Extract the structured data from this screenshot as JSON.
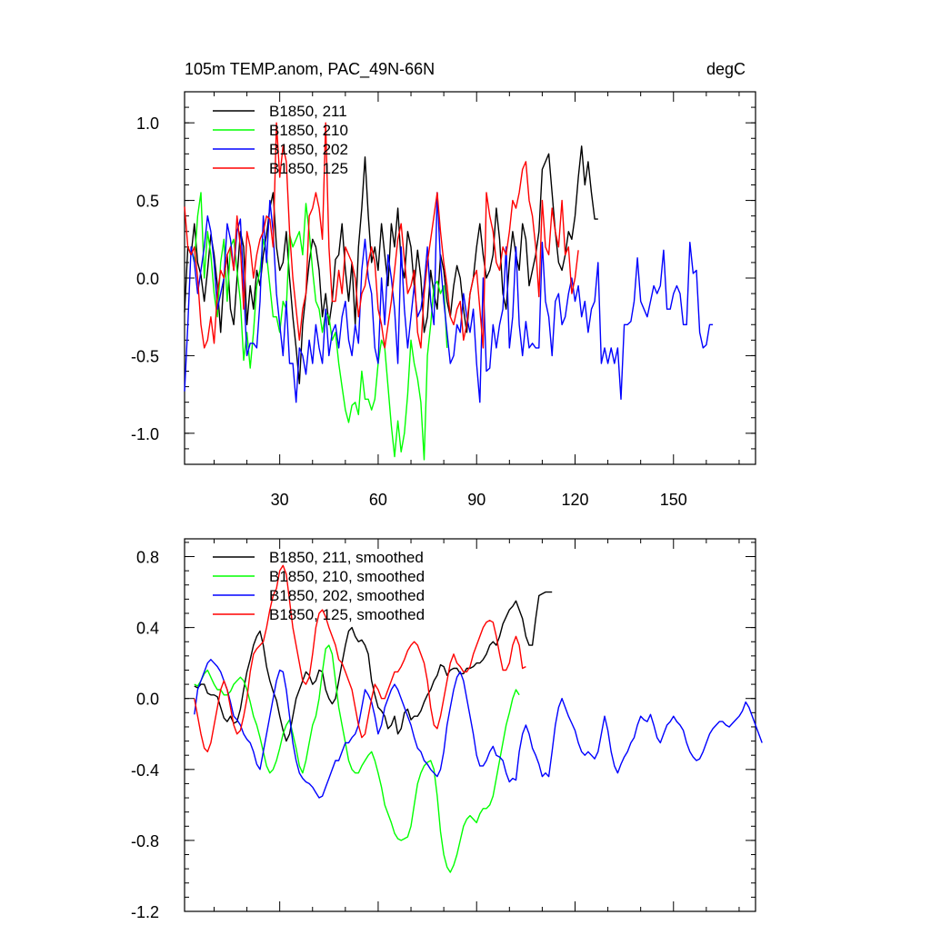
{
  "chart_data": [
    {
      "type": "line",
      "title": "105m TEMP.anom, PAC_49N-66N",
      "units": "degC",
      "xlim": [
        1,
        175
      ],
      "ylim": [
        -1.2,
        1.2
      ],
      "x_ticks": [
        30,
        60,
        90,
        120,
        150
      ],
      "x_tick_labels": [
        "30",
        "60",
        "90",
        "120",
        "150"
      ],
      "y_ticks": [
        -1.0,
        -0.5,
        0.0,
        0.5,
        1.0
      ],
      "y_tick_labels": [
        "-1.0",
        "-0.5",
        "0.0",
        "0.5",
        "1.0"
      ],
      "legend_position": "top-left",
      "series": [
        {
          "name": "B1850, 211",
          "color": "#000000",
          "x0": 1,
          "values": [
            -0.22,
            0.2,
            0.15,
            0.35,
            0.1,
            0.02,
            -0.15,
            0.05,
            0.28,
            0.15,
            -0.05,
            -0.35,
            0.0,
            0.15,
            -0.2,
            -0.3,
            0.0,
            0.3,
            0.2,
            -0.3,
            -0.05,
            -0.2,
            0.05,
            -0.05,
            0.15,
            0.28,
            0.45,
            0.55,
            0.2,
            0.05,
            0.1,
            0.3,
            0.0,
            -0.25,
            -0.45,
            -0.68,
            -0.3,
            -0.1,
            0.1,
            0.25,
            0.2,
            0.05,
            -0.25,
            -0.1,
            -0.3,
            -0.15,
            0.12,
            0.15,
            0.35,
            0.05,
            -0.15,
            0.1,
            -0.3,
            0.2,
            0.45,
            0.78,
            0.4,
            0.1,
            0.2,
            0.05,
            0.35,
            0.15,
            -0.05,
            0.35,
            0.2,
            0.45,
            0.1,
            0.0,
            0.3,
            0.2,
            -0.05,
            0.18,
            0.0,
            -0.35,
            -0.25,
            0.05,
            -0.1,
            -0.2,
            0.15,
            0.05,
            -0.15,
            -0.25,
            -0.05,
            0.08,
            0.0,
            -0.2,
            -0.35,
            -0.1,
            0.0,
            0.2,
            0.35,
            0.15,
            0.0,
            0.05,
            0.15,
            0.45,
            0.25,
            -0.1,
            -0.2,
            0.1,
            0.3,
            0.15,
            0.05,
            0.35,
            0.25,
            -0.05,
            0.05,
            0.15,
            0.3,
            0.7,
            0.75,
            0.8,
            0.55,
            0.3,
            0.1,
            0.05,
            0.15,
            0.3,
            0.25,
            0.4,
            0.65,
            0.85,
            0.6,
            0.75,
            0.55,
            0.38,
            0.38
          ]
        },
        {
          "name": "B1850, 210",
          "color": "#00ff00",
          "x0": 3,
          "values": [
            0.2,
            0.1,
            0.4,
            0.55,
            0.0,
            0.3,
            0.15,
            -0.1,
            -0.25,
            0.1,
            0.25,
            -0.15,
            0.2,
            0.25,
            0.05,
            -0.15,
            -0.53,
            -0.35,
            -0.58,
            -0.35,
            -0.05,
            0.05,
            0.25,
            0.15,
            -0.05,
            -0.25,
            -0.25,
            -0.35,
            -0.15,
            -0.2,
            0.28,
            0.2,
            0.25,
            0.3,
            0.15,
            0.48,
            0.3,
            0.05,
            -0.15,
            -0.2,
            -0.35,
            -0.22,
            -0.25,
            -0.4,
            -0.35,
            -0.55,
            -0.7,
            -0.85,
            -0.93,
            -0.82,
            -0.8,
            -0.88,
            -0.6,
            -0.78,
            -0.78,
            -0.85,
            -0.78,
            -0.55,
            -0.4,
            -0.45,
            -0.7,
            -0.95,
            -1.15,
            -0.92,
            -1.12,
            -1.0,
            -0.75,
            -0.4,
            -0.55,
            -0.65,
            -0.8,
            -1.17,
            -0.5,
            -0.3,
            -0.05,
            -0.02,
            -0.1,
            -0.05,
            -0.45
          ]
        },
        {
          "name": "B1850, 202",
          "color": "#0000ff",
          "x0": 1,
          "values": [
            -0.73,
            -0.3,
            0.2,
            0.1,
            -0.1,
            0.05,
            0.2,
            0.4,
            0.3,
            0.1,
            -0.2,
            -0.1,
            0.0,
            0.35,
            0.25,
            0.05,
            0.3,
            0.38,
            -0.05,
            -0.5,
            -0.42,
            -0.42,
            -0.45,
            -0.15,
            0.4,
            0.1,
            0.5,
            0.3,
            -0.1,
            -0.3,
            -0.5,
            -0.15,
            -0.55,
            -0.55,
            -0.8,
            -0.45,
            -0.5,
            -0.62,
            -0.4,
            -0.55,
            -0.3,
            -0.45,
            -0.55,
            -0.2,
            -0.5,
            -0.35,
            -0.3,
            -0.45,
            -0.25,
            -0.15,
            -0.4,
            -0.5,
            -0.3,
            -0.42,
            0.05,
            0.25,
            0.0,
            -0.1,
            -0.45,
            -0.55,
            0.0,
            -0.3,
            0.15,
            0.0,
            -0.2,
            -0.55,
            0.2,
            -0.2,
            -0.45,
            -0.25,
            -0.05,
            -0.25,
            -0.2,
            -0.05,
            0.2,
            -0.15,
            -0.3,
            0.55,
            0.1,
            -0.15,
            -0.35,
            -0.55,
            -0.5,
            -0.3,
            -0.35,
            -0.1,
            -0.25,
            -0.35,
            -0.2,
            -0.55,
            -0.8,
            0.0,
            -0.6,
            -0.58,
            -0.3,
            -0.45,
            -0.3,
            -0.2,
            0.2,
            -0.45,
            -0.25,
            0.2,
            -0.3,
            -0.5,
            -0.28,
            -0.45,
            -0.42,
            -0.45,
            -0.45,
            0.23,
            -0.15,
            -0.25,
            -0.5,
            -0.15,
            -0.1,
            -0.3,
            -0.25,
            -0.1,
            0.0,
            -0.15,
            -0.05,
            -0.25,
            -0.15,
            -0.35,
            -0.2,
            -0.15,
            0.1,
            -0.55,
            -0.45,
            -0.55,
            -0.45,
            -0.55,
            -0.45,
            -0.78,
            -0.3,
            -0.3,
            -0.28,
            -0.15,
            0.13,
            -0.15,
            -0.2,
            -0.25,
            -0.15,
            -0.05,
            -0.1,
            -0.05,
            0.18,
            -0.2,
            -0.2,
            -0.1,
            -0.05,
            -0.1,
            -0.3,
            -0.3,
            0.23,
            0.03,
            0.05,
            -0.35,
            -0.45,
            -0.43,
            -0.3,
            -0.3
          ]
        },
        {
          "name": "B1850, 125",
          "color": "#ff0000",
          "x0": 1,
          "values": [
            0.46,
            0.2,
            0.15,
            0.2,
            0.0,
            -0.3,
            -0.45,
            -0.4,
            -0.25,
            -0.42,
            -0.1,
            0.05,
            0.0,
            0.15,
            0.2,
            0.05,
            0.4,
            0.2,
            -0.2,
            0.3,
            0.2,
            0.0,
            0.15,
            0.25,
            0.3,
            0.4,
            0.38,
            0.2,
            1.0,
            0.65,
            0.85,
            0.75,
            0.3,
            0.0,
            -0.2,
            -0.4,
            -0.2,
            -0.1,
            0.4,
            0.45,
            0.55,
            0.45,
            0.25,
            1.0,
            0.2,
            -0.15,
            -0.15,
            0.05,
            -0.1,
            0.2,
            0.15,
            0.1,
            0.0,
            -0.25,
            -0.1,
            -0.05,
            0.1,
            0.2,
            0.1,
            -0.2,
            -0.3,
            -0.45,
            -0.3,
            -0.15,
            0.05,
            0.25,
            0.35,
            0.12,
            -0.1,
            -0.05,
            0.05,
            -0.35,
            -0.45,
            -0.1,
            0.1,
            0.25,
            0.4,
            0.55,
            0.3,
            0.1,
            -0.05,
            -0.25,
            -0.3,
            -0.2,
            -0.15,
            -0.4,
            -0.3,
            -0.1,
            0.0,
            0.05,
            -0.2,
            -0.45,
            0.55,
            0.4,
            0.3,
            0.1,
            0.05,
            0.2,
            0.15,
            0.3,
            0.5,
            0.45,
            0.55,
            0.7,
            0.75,
            0.5,
            0.4,
            0.2,
            -0.12,
            0.5,
            0.2,
            0.15,
            0.45,
            0.3,
            0.2,
            0.5,
            0.15,
            0.2,
            -0.1,
            0.0,
            0.18
          ]
        }
      ]
    },
    {
      "type": "line",
      "title": "",
      "xlim": [
        1,
        175
      ],
      "ylim": [
        -1.2,
        0.9
      ],
      "y_ticks": [
        -1.2,
        -0.8,
        -0.4,
        0.0,
        0.4,
        0.8
      ],
      "y_tick_labels": [
        "-1.2",
        "-0.8",
        "-0.4",
        "0.0",
        "0.4",
        "0.8"
      ],
      "legend_position": "top-left",
      "series": [
        {
          "name": "B1850, 211, smoothed",
          "color": "#000000",
          "x0": 4,
          "values": [
            0.07,
            0.06,
            0.08,
            0.08,
            0.03,
            0.02,
            0.02,
            0.01,
            -0.05,
            -0.11,
            -0.13,
            -0.1,
            -0.14,
            -0.13,
            -0.06,
            0.05,
            0.15,
            0.22,
            0.3,
            0.35,
            0.38,
            0.3,
            0.18,
            0.1,
            0.04,
            -0.01,
            -0.1,
            -0.18,
            -0.24,
            -0.2,
            -0.1,
            0.0,
            0.05,
            0.1,
            0.15,
            0.13,
            0.08,
            0.1,
            0.16,
            0.15,
            0.05,
            0.0,
            -0.03,
            0.0,
            0.1,
            0.2,
            0.3,
            0.38,
            0.4,
            0.35,
            0.32,
            0.33,
            0.3,
            0.25,
            0.1,
            0.02,
            -0.05,
            -0.07,
            -0.1,
            -0.17,
            -0.15,
            -0.1,
            -0.2,
            -0.17,
            -0.08,
            -0.06,
            -0.12,
            -0.1,
            -0.1,
            -0.07,
            -0.02,
            0.02,
            0.05,
            0.1,
            0.13,
            0.19,
            0.18,
            0.13,
            0.16,
            0.17,
            0.17,
            0.14,
            0.14,
            0.17,
            0.17,
            0.18,
            0.2,
            0.2,
            0.22,
            0.25,
            0.3,
            0.32,
            0.3,
            0.35,
            0.42,
            0.46,
            0.5,
            0.52,
            0.55,
            0.5,
            0.45,
            0.35,
            0.3,
            0.3,
            0.45,
            0.58,
            0.59,
            0.6,
            0.6,
            0.6
          ]
        },
        {
          "name": "B1850, 210, smoothed",
          "color": "#00ff00",
          "x0": 4,
          "values": [
            0.08,
            0.07,
            0.1,
            0.14,
            0.16,
            0.12,
            0.08,
            0.05,
            0.05,
            0.02,
            0.02,
            0.04,
            0.08,
            0.1,
            0.12,
            0.1,
            0.05,
            -0.02,
            -0.1,
            -0.15,
            -0.22,
            -0.3,
            -0.38,
            -0.42,
            -0.4,
            -0.35,
            -0.28,
            -0.2,
            -0.15,
            -0.12,
            -0.2,
            -0.28,
            -0.38,
            -0.42,
            -0.35,
            -0.25,
            -0.15,
            -0.1,
            0.0,
            0.15,
            0.28,
            0.3,
            0.25,
            0.1,
            -0.05,
            -0.15,
            -0.25,
            -0.35,
            -0.4,
            -0.42,
            -0.42,
            -0.38,
            -0.35,
            -0.32,
            -0.3,
            -0.35,
            -0.42,
            -0.5,
            -0.6,
            -0.65,
            -0.7,
            -0.76,
            -0.79,
            -0.8,
            -0.79,
            -0.78,
            -0.72,
            -0.6,
            -0.48,
            -0.42,
            -0.38,
            -0.36,
            -0.35,
            -0.4,
            -0.55,
            -0.75,
            -0.88,
            -0.95,
            -0.98,
            -0.94,
            -0.88,
            -0.8,
            -0.72,
            -0.68,
            -0.66,
            -0.68,
            -0.7,
            -0.65,
            -0.62,
            -0.62,
            -0.6,
            -0.55,
            -0.45,
            -0.35,
            -0.25,
            -0.15,
            -0.08,
            0.0,
            0.05,
            0.02
          ]
        },
        {
          "name": "B1850, 202, smoothed",
          "color": "#0000ff",
          "x0": 4,
          "values": [
            -0.09,
            0.05,
            0.1,
            0.15,
            0.2,
            0.22,
            0.2,
            0.18,
            0.15,
            0.1,
            0.05,
            -0.02,
            -0.1,
            -0.12,
            -0.15,
            -0.2,
            -0.23,
            -0.25,
            -0.3,
            -0.37,
            -0.4,
            -0.3,
            -0.2,
            -0.1,
            0.0,
            0.1,
            0.16,
            0.15,
            0.05,
            -0.1,
            -0.25,
            -0.35,
            -0.42,
            -0.45,
            -0.47,
            -0.48,
            -0.5,
            -0.53,
            -0.56,
            -0.55,
            -0.5,
            -0.45,
            -0.4,
            -0.35,
            -0.35,
            -0.3,
            -0.25,
            -0.25,
            -0.22,
            -0.2,
            -0.15,
            -0.05,
            0.05,
            0.02,
            -0.02,
            -0.1,
            -0.2,
            -0.15,
            -0.05,
            0.0,
            0.05,
            0.08,
            0.05,
            0.0,
            -0.05,
            -0.1,
            -0.15,
            -0.22,
            -0.28,
            -0.3,
            -0.35,
            -0.37,
            -0.4,
            -0.42,
            -0.44,
            -0.4,
            -0.3,
            -0.15,
            -0.05,
            0.05,
            0.12,
            0.15,
            0.1,
            0.0,
            -0.1,
            -0.2,
            -0.32,
            -0.38,
            -0.38,
            -0.35,
            -0.3,
            -0.27,
            -0.32,
            -0.33,
            -0.35,
            -0.42,
            -0.47,
            -0.45,
            -0.46,
            -0.3,
            -0.2,
            -0.15,
            -0.2,
            -0.28,
            -0.32,
            -0.37,
            -0.44,
            -0.42,
            -0.44,
            -0.3,
            -0.15,
            -0.05,
            0.0,
            -0.05,
            -0.1,
            -0.14,
            -0.18,
            -0.25,
            -0.3,
            -0.32,
            -0.3,
            -0.32,
            -0.34,
            -0.3,
            -0.2,
            -0.1,
            -0.18,
            -0.3,
            -0.38,
            -0.42,
            -0.37,
            -0.33,
            -0.3,
            -0.25,
            -0.22,
            -0.15,
            -0.1,
            -0.12,
            -0.13,
            -0.09,
            -0.15,
            -0.22,
            -0.25,
            -0.2,
            -0.15,
            -0.13,
            -0.1,
            -0.13,
            -0.15,
            -0.18,
            -0.25,
            -0.3,
            -0.33,
            -0.35,
            -0.34,
            -0.3,
            -0.25,
            -0.2,
            -0.17,
            -0.15,
            -0.13,
            -0.13,
            -0.15,
            -0.16,
            -0.14,
            -0.12,
            -0.1,
            -0.07,
            -0.02,
            -0.05,
            -0.1,
            -0.15,
            -0.2,
            -0.25
          ]
        },
        {
          "name": "B1850, 125, smoothed",
          "color": "#ff0000",
          "x0": 4,
          "values": [
            0.0,
            -0.1,
            -0.2,
            -0.28,
            -0.3,
            -0.25,
            -0.15,
            -0.05,
            0.05,
            0.1,
            0.05,
            -0.05,
            -0.15,
            -0.2,
            -0.18,
            -0.1,
            0.0,
            0.15,
            0.25,
            0.28,
            0.3,
            0.32,
            0.4,
            0.5,
            0.58,
            0.62,
            0.72,
            0.75,
            0.7,
            0.55,
            0.4,
            0.3,
            0.2,
            0.1,
            0.08,
            0.12,
            0.25,
            0.4,
            0.48,
            0.5,
            0.46,
            0.4,
            0.35,
            0.3,
            0.22,
            0.2,
            0.15,
            0.1,
            0.05,
            -0.05,
            -0.15,
            -0.22,
            -0.2,
            -0.1,
            0.0,
            0.08,
            0.05,
            0.0,
            0.0,
            0.05,
            0.1,
            0.15,
            0.15,
            0.18,
            0.22,
            0.27,
            0.3,
            0.32,
            0.3,
            0.25,
            0.2,
            0.1,
            -0.05,
            -0.15,
            -0.17,
            -0.1,
            0.0,
            0.1,
            0.2,
            0.25,
            0.2,
            0.18,
            0.15,
            0.15,
            0.18,
            0.25,
            0.3,
            0.35,
            0.4,
            0.43,
            0.44,
            0.43,
            0.35,
            0.25,
            0.16,
            0.16,
            0.2,
            0.3,
            0.35,
            0.3,
            0.17,
            0.18
          ]
        }
      ]
    }
  ]
}
